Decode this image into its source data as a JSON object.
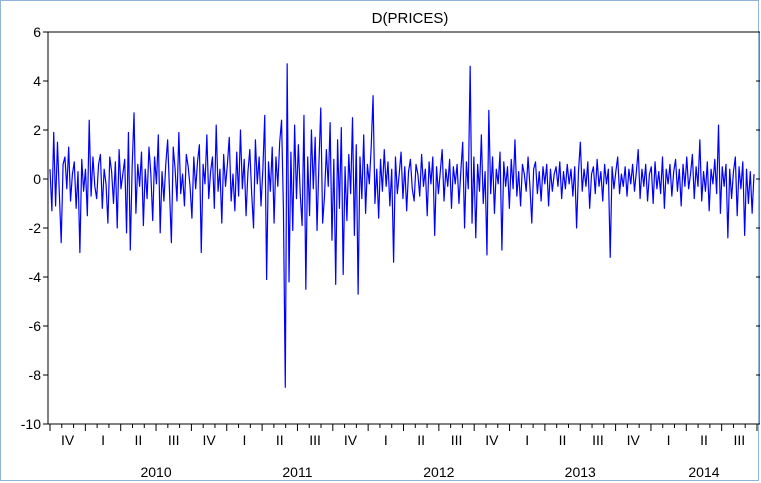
{
  "chart_data": {
    "type": "line",
    "title": "D(PRICES)",
    "xlabel": "",
    "ylabel": "",
    "ylim": [
      -10,
      6
    ],
    "yticks": [
      6,
      4,
      2,
      0,
      -2,
      -4,
      -6,
      -8,
      -10
    ],
    "grid": false,
    "legend": "none",
    "frequency": "daily (business days)",
    "series": [
      {
        "color": "#0000ff",
        "x_start": "2009-10-01",
        "x_end": "2014-09-30",
        "values_note": "sampled every ~4 trading days; values read from plot",
        "values": [
          0.4,
          -1.3,
          1.9,
          -1.1,
          1.5,
          -0.6,
          -2.6,
          0.6,
          0.9,
          -0.4,
          1.3,
          -0.9,
          0.2,
          0.7,
          -1.2,
          0.3,
          -3.0,
          0.8,
          -0.5,
          0.4,
          -1.5,
          2.4,
          -0.7,
          0.9,
          -0.3,
          -0.8,
          0.6,
          1.0,
          -1.2,
          0.4,
          -0.2,
          -1.8,
          0.9,
          0.3,
          -1.0,
          0.7,
          -2.0,
          1.2,
          -0.4,
          0.2,
          0.8,
          -2.2,
          1.9,
          -2.9,
          0.5,
          2.7,
          -1.4,
          0.6,
          -0.3,
          1.1,
          -1.9,
          0.4,
          -0.8,
          1.3,
          0.2,
          -1.7,
          0.9,
          -0.2,
          1.8,
          -2.2,
          0.3,
          -0.9,
          0.6,
          1.6,
          -0.5,
          -2.6,
          1.3,
          0.4,
          -0.9,
          1.9,
          -0.6,
          0.2,
          -1.1,
          1.0,
          0.5,
          -0.3,
          -1.6,
          0.9,
          -0.4,
          0.7,
          1.4,
          -3.0,
          0.6,
          -0.2,
          1.8,
          -0.8,
          0.3,
          0.9,
          -1.2,
          2.2,
          -0.5,
          0.4,
          -1.8,
          1.0,
          -0.3,
          0.6,
          1.7,
          -0.9,
          0.2,
          -1.3,
          1.1,
          -0.7,
          2.0,
          -0.4,
          0.8,
          -1.5,
          0.3,
          1.2,
          -0.6,
          -2.0,
          1.6,
          -0.2,
          0.9,
          -1.1,
          0.4,
          2.6,
          -4.1,
          0.7,
          -0.5,
          1.3,
          -1.8,
          0.9,
          -0.3,
          1.5,
          2.4,
          -1.2,
          -8.5,
          4.7,
          -4.2,
          1.1,
          -2.1,
          2.2,
          -0.8,
          1.4,
          -0.6,
          -1.9,
          2.6,
          -4.5,
          0.9,
          -1.5,
          2.0,
          -0.4,
          1.7,
          -2.1,
          0.6,
          2.9,
          -1.8,
          -0.7,
          1.2,
          -0.3,
          2.3,
          -2.5,
          0.8,
          -4.3,
          1.6,
          -1.2,
          2.1,
          -3.9,
          0.5,
          -1.7,
          1.0,
          -0.6,
          2.5,
          -2.3,
          1.4,
          -4.7,
          0.9,
          -0.8,
          1.8,
          -1.4,
          0.6,
          -0.2,
          1.3,
          3.4,
          -1.0,
          0.4,
          -1.6,
          0.8,
          -0.5,
          1.2,
          -0.3,
          0.7,
          -1.1,
          0.4,
          -3.4,
          0.9,
          -0.6,
          0.2,
          1.1,
          -0.8,
          0.5,
          -1.3,
          0.3,
          0.8,
          -0.4,
          -0.9,
          0.6,
          0.2,
          -0.7,
          1.0,
          -0.3,
          0.4,
          -1.5,
          0.7,
          -0.2,
          0.9,
          -2.3,
          0.5,
          -0.6,
          0.3,
          1.2,
          -0.9,
          0.4,
          -0.3,
          0.8,
          -1.2,
          0.5,
          -0.2,
          0.6,
          -1.0,
          0.3,
          1.5,
          -2.0,
          0.7,
          -0.4,
          4.6,
          -1.8,
          0.9,
          -2.4,
          0.6,
          -0.5,
          1.8,
          -1.0,
          0.3,
          -3.1,
          2.8,
          -0.6,
          0.9,
          -1.4,
          0.4,
          -0.2,
          1.1,
          -2.9,
          0.7,
          -0.3,
          0.5,
          -1.2,
          0.8,
          -0.4,
          1.6,
          -0.7,
          0.3,
          -1.1,
          0.6,
          0.2,
          -0.5,
          0.9,
          -0.3,
          -1.8,
          0.4,
          0.7,
          -0.6,
          0.3,
          -0.9,
          0.5,
          -0.2,
          0.6,
          -1.1,
          0.4,
          -0.5,
          0.2,
          0.5,
          -0.3,
          0.7,
          -0.8,
          0.3,
          -0.4,
          0.6,
          -0.2,
          0.4,
          -0.7,
          0.5,
          -2.0,
          0.3,
          1.5,
          -0.5,
          0.4,
          -0.3,
          0.7,
          -1.2,
          0.2,
          0.5,
          -0.6,
          0.8,
          -0.3,
          0.3,
          -0.9,
          0.6,
          -0.2,
          0.4,
          -3.2,
          0.5,
          -0.4,
          0.3,
          0.9,
          -0.6,
          0.2,
          -0.3,
          0.5,
          -0.7,
          0.4,
          -0.2,
          0.6,
          -0.5,
          0.3,
          1.2,
          -0.8,
          0.4,
          -0.3,
          0.6,
          -0.9,
          0.2,
          0.5,
          -1.0,
          0.7,
          -0.4,
          0.3,
          -0.6,
          0.9,
          -1.2,
          0.4,
          -0.2,
          0.6,
          -0.7,
          0.3,
          0.8,
          -0.5,
          0.4,
          -1.1,
          0.6,
          -0.3,
          0.9,
          -0.4,
          0.2,
          1.0,
          -0.8,
          0.5,
          -0.3,
          1.6,
          -0.9,
          0.3,
          -0.5,
          0.7,
          -1.3,
          0.4,
          -0.2,
          0.8,
          -0.6,
          2.2,
          -1.4,
          0.5,
          -0.3,
          0.6,
          -2.4,
          0.4,
          -0.8,
          0.3,
          0.9,
          -1.5,
          0.5,
          -0.4,
          0.7,
          -2.3,
          0.4,
          -1.0,
          0.3,
          -1.4,
          0.2
        ]
      }
    ],
    "quarter_labels": [
      "IV",
      "I",
      "II",
      "III",
      "IV",
      "I",
      "II",
      "III",
      "IV",
      "I",
      "II",
      "III",
      "IV",
      "I",
      "II",
      "III",
      "IV",
      "I",
      "II",
      "III"
    ],
    "year_labels": [
      "2010",
      "2011",
      "2012",
      "2013",
      "2014"
    ]
  }
}
